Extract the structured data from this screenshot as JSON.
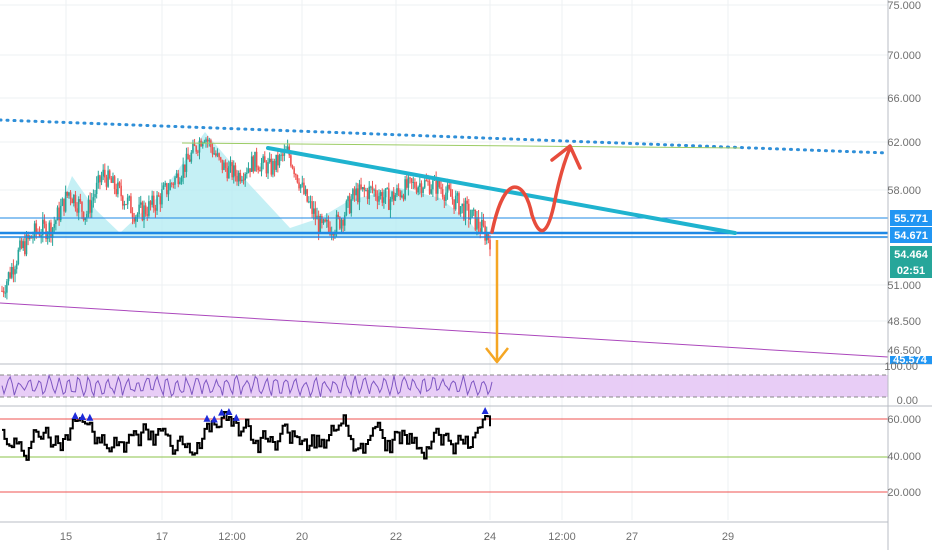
{
  "colors": {
    "grid": "#eef0f3",
    "axis_text": "#707070",
    "candle_up": "#26a69a",
    "candle_down": "#ef5350",
    "pattern_fill": "#b2ebf2",
    "channel_dotted": "#2f8fd8",
    "neckline": "#1e88e5",
    "trendline": "#1fb3cf",
    "resistance_thin": "#9ccc65",
    "support_thin": "#ab47bc",
    "red_arrow": "#e74c3c",
    "orange_arrow": "#f5a623",
    "tag_blue": "#2196f3",
    "tag_green": "#26a69a",
    "rsi_band": "#e6c8f5",
    "rsi_line": "#7e57c2",
    "osc_line": "#000000",
    "osc_up_marker": "#1e2bd9",
    "osc_down_marker": "#2ecc40",
    "osc_level_top": "#ef5350",
    "osc_level_mid": "#8bc34a",
    "osc_level_bottom": "#ef5350"
  },
  "chart_data": [
    {
      "type": "line",
      "name_hint": "price",
      "y_axis_labels": [
        "75.000",
        "70.000",
        "66.000",
        "62.000",
        "58.000",
        "51.000",
        "48.500",
        "46.500"
      ],
      "x_axis_labels": [
        "15",
        "17",
        "12:00",
        "20",
        "22",
        "24",
        "12:00",
        "27",
        "29"
      ],
      "price_tags": [
        {
          "label": "55.771",
          "color": "tag_blue"
        },
        {
          "label": "54.671",
          "color": "tag_blue"
        },
        {
          "label": "54.464",
          "color": "tag_green"
        },
        {
          "label": "02:51",
          "color": "tag_green"
        }
      ],
      "cut_tag": "45.574",
      "series_points": [
        [
          0,
          50.6
        ],
        [
          1,
          53.4
        ],
        [
          2,
          54.9
        ],
        [
          3,
          55.3
        ],
        [
          4,
          57.9
        ],
        [
          5,
          56.2
        ],
        [
          6,
          59.3
        ],
        [
          7,
          57.8
        ],
        [
          8,
          56.2
        ],
        [
          9,
          56.9
        ],
        [
          10,
          58.4
        ],
        [
          11,
          60.3
        ],
        [
          12,
          62.7
        ],
        [
          13,
          60.1
        ],
        [
          14,
          59.2
        ],
        [
          15,
          60.4
        ],
        [
          16,
          59.8
        ],
        [
          17,
          61.2
        ],
        [
          18,
          57.5
        ],
        [
          19,
          55.1
        ],
        [
          20,
          55.6
        ],
        [
          21,
          57.7
        ],
        [
          22,
          58.0
        ],
        [
          23,
          57.3
        ],
        [
          24,
          58.2
        ],
        [
          25,
          58.6
        ],
        [
          26,
          58.3
        ],
        [
          27,
          57.1
        ],
        [
          28,
          55.9
        ],
        [
          29,
          54.4
        ]
      ]
    },
    {
      "type": "line",
      "name_hint": "rsi",
      "y_axis_labels": [
        "100.00",
        "0.00"
      ]
    },
    {
      "type": "line",
      "name_hint": "oscillator",
      "y_axis_labels": [
        "60.000",
        "40.000",
        "20.000"
      ]
    }
  ]
}
